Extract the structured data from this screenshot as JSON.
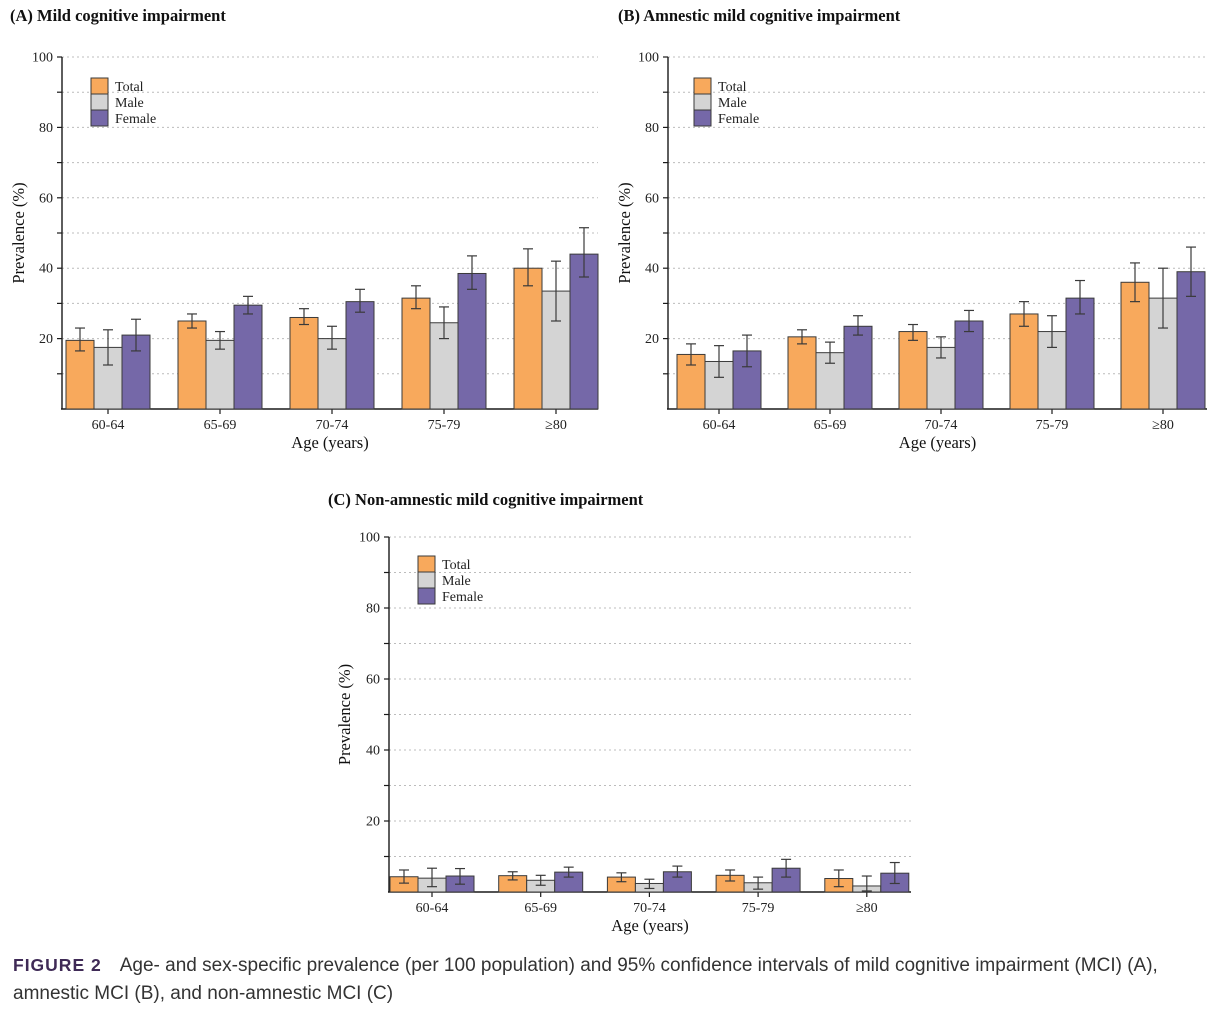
{
  "colors": {
    "total": "#F8A95C",
    "male": "#D4D4D4",
    "female": "#7568A8",
    "bar_border": "#3A3A3A",
    "error": "#3A3A3A",
    "grid": "#BCBCBC",
    "axis": "#1A1A1A",
    "figure_label": "#3F2A56",
    "caption_text": "#333333"
  },
  "chart_data": [
    {
      "id": "A",
      "type": "bar",
      "title": "(A) Mild cognitive impairment",
      "xlabel": "Age (years)",
      "ylabel": "Prevalence (%)",
      "ylim": [
        0,
        100
      ],
      "ytick_labels": [
        20,
        40,
        60,
        80,
        100
      ],
      "grid_step": 10,
      "grid": "dashed",
      "legend_position": "top-left",
      "legend": [
        "Total",
        "Male",
        "Female"
      ],
      "categories": [
        "60-64",
        "65-69",
        "70-74",
        "75-79",
        "≥80"
      ],
      "series": [
        {
          "name": "Total",
          "color_key": "total",
          "values": [
            19.5,
            25,
            26,
            31.5,
            40
          ],
          "ci_low": [
            16.5,
            23,
            24,
            28.5,
            35
          ],
          "ci_high": [
            23,
            27,
            28.5,
            35,
            45.5
          ]
        },
        {
          "name": "Male",
          "color_key": "male",
          "values": [
            17.5,
            19.5,
            20,
            24.5,
            33.5
          ],
          "ci_low": [
            12.5,
            17,
            17,
            20,
            25
          ],
          "ci_high": [
            22.5,
            22,
            23.5,
            29,
            42
          ]
        },
        {
          "name": "Female",
          "color_key": "female",
          "values": [
            21,
            29.5,
            30.5,
            38.5,
            44
          ],
          "ci_low": [
            16.5,
            27,
            27.5,
            34,
            37.5
          ],
          "ci_high": [
            25.5,
            32,
            34,
            43.5,
            51.5
          ]
        }
      ]
    },
    {
      "id": "B",
      "type": "bar",
      "title": "(B) Amnestic mild cognitive impairment",
      "xlabel": "Age (years)",
      "ylabel": "Prevalence (%)",
      "ylim": [
        0,
        100
      ],
      "ytick_labels": [
        20,
        40,
        60,
        80,
        100
      ],
      "grid_step": 10,
      "grid": "dashed",
      "legend_position": "top-left",
      "legend": [
        "Total",
        "Male",
        "Female"
      ],
      "categories": [
        "60-64",
        "65-69",
        "70-74",
        "75-79",
        "≥80"
      ],
      "series": [
        {
          "name": "Total",
          "color_key": "total",
          "values": [
            15.5,
            20.5,
            22,
            27,
            36
          ],
          "ci_low": [
            12.5,
            18.5,
            19.5,
            23.5,
            30.5
          ],
          "ci_high": [
            18.5,
            22.5,
            24,
            30.5,
            41.5
          ]
        },
        {
          "name": "Male",
          "color_key": "male",
          "values": [
            13.5,
            16,
            17.5,
            22,
            31.5
          ],
          "ci_low": [
            9,
            13,
            14.5,
            17.5,
            23
          ],
          "ci_high": [
            18,
            19,
            20.5,
            26.5,
            40
          ]
        },
        {
          "name": "Female",
          "color_key": "female",
          "values": [
            16.5,
            23.5,
            25,
            31.5,
            39
          ],
          "ci_low": [
            12,
            21,
            22,
            27,
            32
          ],
          "ci_high": [
            21,
            26.5,
            28,
            36.5,
            46
          ]
        }
      ]
    },
    {
      "id": "C",
      "type": "bar",
      "title": "(C) Non-amnestic mild cognitive impairment",
      "xlabel": "Age (years)",
      "ylabel": "Prevalence (%)",
      "ylim": [
        0,
        100
      ],
      "ytick_labels": [
        20,
        40,
        60,
        80,
        100
      ],
      "grid_step": 10,
      "grid": "dashed",
      "legend_position": "top-left",
      "legend": [
        "Total",
        "Male",
        "Female"
      ],
      "categories": [
        "60-64",
        "65-69",
        "70-74",
        "75-79",
        "≥80"
      ],
      "series": [
        {
          "name": "Total",
          "color_key": "total",
          "values": [
            4.3,
            4.6,
            4.2,
            4.7,
            3.8
          ],
          "ci_low": [
            2.5,
            3.4,
            2.9,
            3.1,
            1.5
          ],
          "ci_high": [
            6.2,
            5.7,
            5.4,
            6.2,
            6.2
          ]
        },
        {
          "name": "Male",
          "color_key": "male",
          "values": [
            3.9,
            3.3,
            2.4,
            2.6,
            1.7
          ],
          "ci_low": [
            1.5,
            1.9,
            1.0,
            0.8,
            0.3
          ],
          "ci_high": [
            6.7,
            4.7,
            3.6,
            4.2,
            4.5
          ]
        },
        {
          "name": "Female",
          "color_key": "female",
          "values": [
            4.5,
            5.6,
            5.7,
            6.7,
            5.3
          ],
          "ci_low": [
            2.2,
            4.2,
            4.2,
            4.2,
            2.4
          ],
          "ci_high": [
            6.6,
            7.0,
            7.3,
            9.2,
            8.3
          ]
        }
      ]
    }
  ],
  "caption": {
    "label": "FIGURE 2",
    "lines": [
      "Age- and sex-specific prevalence (per 100 population) and 95% confidence intervals of mild cognitive impairment (MCI) (A),",
      "amnestic MCI (B), and non-amnestic MCI (C)"
    ]
  }
}
